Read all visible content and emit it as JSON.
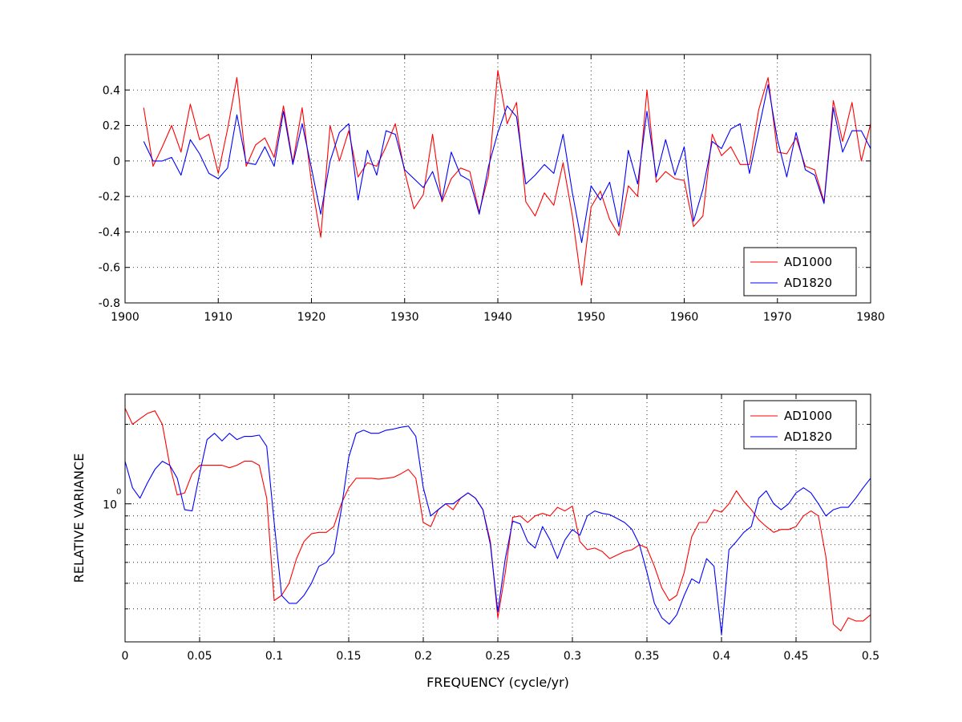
{
  "chart_data": [
    {
      "type": "line",
      "title": "",
      "xlabel": "",
      "ylabel": "",
      "xlim": [
        1900,
        1980
      ],
      "ylim": [
        -0.8,
        0.6
      ],
      "grid": true,
      "legend_position": "bottom-right",
      "x_ticks": [
        1900,
        1910,
        1920,
        1930,
        1940,
        1950,
        1960,
        1970,
        1980
      ],
      "x_tick_labels": [
        "1900",
        "1910",
        "1920",
        "1930",
        "1940",
        "1950",
        "1960",
        "1970",
        "1980"
      ],
      "y_ticks": [
        -0.8,
        -0.6,
        -0.4,
        -0.2,
        0,
        0.2,
        0.4
      ],
      "y_tick_labels": [
        "-0.8",
        "-0.6",
        "-0.4",
        "-0.2",
        "0",
        "0.2",
        "0.4"
      ],
      "x": [
        1902,
        1903,
        1904,
        1905,
        1906,
        1907,
        1908,
        1909,
        1910,
        1911,
        1912,
        1913,
        1914,
        1915,
        1916,
        1917,
        1918,
        1919,
        1920,
        1921,
        1922,
        1923,
        1924,
        1925,
        1926,
        1927,
        1928,
        1929,
        1930,
        1931,
        1932,
        1933,
        1934,
        1935,
        1936,
        1937,
        1938,
        1939,
        1940,
        1941,
        1942,
        1943,
        1944,
        1945,
        1946,
        1947,
        1948,
        1949,
        1950,
        1951,
        1952,
        1953,
        1954,
        1955,
        1956,
        1957,
        1958,
        1959,
        1960,
        1961,
        1962,
        1963,
        1964,
        1965,
        1966,
        1967,
        1968,
        1969,
        1970,
        1971,
        1972,
        1973,
        1974,
        1975,
        1976,
        1977,
        1978,
        1979,
        1980
      ],
      "series": [
        {
          "name": "AD1000",
          "color": "#ff0000",
          "values": [
            0.3,
            -0.03,
            0.08,
            0.2,
            0.05,
            0.32,
            0.12,
            0.15,
            -0.07,
            0.18,
            0.47,
            -0.03,
            0.09,
            0.13,
            0.02,
            0.31,
            -0.01,
            0.3,
            -0.12,
            -0.43,
            0.2,
            0.0,
            0.17,
            -0.09,
            -0.01,
            -0.03,
            0.08,
            0.21,
            -0.06,
            -0.27,
            -0.19,
            0.15,
            -0.23,
            -0.1,
            -0.04,
            -0.06,
            -0.29,
            -0.08,
            0.51,
            0.21,
            0.33,
            -0.23,
            -0.31,
            -0.18,
            -0.25,
            -0.01,
            -0.31,
            -0.7,
            -0.26,
            -0.17,
            -0.33,
            -0.42,
            -0.14,
            -0.2,
            0.4,
            -0.12,
            -0.06,
            -0.1,
            -0.11,
            -0.37,
            -0.31,
            0.15,
            0.03,
            0.08,
            -0.02,
            -0.02,
            0.29,
            0.47,
            0.05,
            0.04,
            0.13,
            -0.03,
            -0.05,
            -0.23,
            0.34,
            0.11,
            0.33,
            0.0,
            0.21
          ]
        },
        {
          "name": "AD1820",
          "color": "#0000ff",
          "values": [
            0.11,
            0.0,
            0.0,
            0.02,
            -0.08,
            0.12,
            0.04,
            -0.07,
            -0.1,
            -0.04,
            0.26,
            -0.01,
            -0.02,
            0.08,
            -0.03,
            0.28,
            -0.02,
            0.21,
            -0.04,
            -0.3,
            0.0,
            0.16,
            0.21,
            -0.22,
            0.06,
            -0.08,
            0.17,
            0.15,
            -0.05,
            -0.1,
            -0.15,
            -0.06,
            -0.22,
            0.05,
            -0.08,
            -0.11,
            -0.3,
            -0.03,
            0.16,
            0.31,
            0.25,
            -0.13,
            -0.08,
            -0.02,
            -0.07,
            0.15,
            -0.18,
            -0.46,
            -0.14,
            -0.22,
            -0.12,
            -0.37,
            0.06,
            -0.13,
            0.28,
            -0.09,
            0.12,
            -0.08,
            0.08,
            -0.34,
            -0.16,
            0.11,
            0.07,
            0.18,
            0.21,
            -0.07,
            0.18,
            0.43,
            0.12,
            -0.09,
            0.16,
            -0.05,
            -0.08,
            -0.24,
            0.3,
            0.05,
            0.17,
            0.17,
            0.07
          ]
        }
      ]
    },
    {
      "type": "line",
      "title": "",
      "xlabel": "FREQUENCY (cycle/yr)",
      "ylabel": "RELATIVE VARIANCE",
      "xlim": [
        0,
        0.5
      ],
      "y_scale": "log",
      "ylim": [
        0.3,
        2.6
      ],
      "grid": true,
      "legend_position": "top-right",
      "x_ticks": [
        0,
        0.05,
        0.1,
        0.15,
        0.2,
        0.25,
        0.3,
        0.35,
        0.4,
        0.45,
        0.5
      ],
      "x_tick_labels": [
        "0",
        "0.05",
        "0.1",
        "0.15",
        "0.2",
        "0.25",
        "0.3",
        "0.35",
        "0.4",
        "0.45",
        "0.5"
      ],
      "y_tick_label_base": "10",
      "y_tick_label_exponent": "0",
      "y_minor_ticks": [
        0.3,
        0.4,
        0.5,
        0.6,
        0.7,
        0.8,
        0.9,
        2
      ],
      "x": [
        0,
        0.005,
        0.01,
        0.015,
        0.02,
        0.025,
        0.03,
        0.035,
        0.04,
        0.045,
        0.05,
        0.055,
        0.06,
        0.065,
        0.07,
        0.075,
        0.08,
        0.085,
        0.09,
        0.095,
        0.1,
        0.105,
        0.11,
        0.115,
        0.12,
        0.125,
        0.13,
        0.135,
        0.14,
        0.145,
        0.15,
        0.155,
        0.16,
        0.165,
        0.17,
        0.175,
        0.18,
        0.185,
        0.19,
        0.195,
        0.2,
        0.205,
        0.21,
        0.215,
        0.22,
        0.225,
        0.23,
        0.235,
        0.24,
        0.245,
        0.25,
        0.255,
        0.26,
        0.265,
        0.27,
        0.275,
        0.28,
        0.285,
        0.29,
        0.295,
        0.3,
        0.305,
        0.31,
        0.315,
        0.32,
        0.325,
        0.33,
        0.335,
        0.34,
        0.345,
        0.35,
        0.355,
        0.36,
        0.365,
        0.37,
        0.375,
        0.38,
        0.385,
        0.39,
        0.395,
        0.4,
        0.405,
        0.41,
        0.415,
        0.42,
        0.425,
        0.43,
        0.435,
        0.44,
        0.445,
        0.45,
        0.455,
        0.46,
        0.465,
        0.47,
        0.475,
        0.48,
        0.485,
        0.49,
        0.495,
        0.5
      ],
      "series": [
        {
          "name": "AD1000",
          "color": "#ff0000",
          "values": [
            2.3,
            2.0,
            2.1,
            2.2,
            2.25,
            2.0,
            1.4,
            1.08,
            1.1,
            1.3,
            1.4,
            1.4,
            1.4,
            1.4,
            1.37,
            1.4,
            1.45,
            1.45,
            1.4,
            1.05,
            0.43,
            0.45,
            0.5,
            0.62,
            0.72,
            0.77,
            0.78,
            0.78,
            0.82,
            1.0,
            1.15,
            1.25,
            1.25,
            1.25,
            1.24,
            1.25,
            1.26,
            1.3,
            1.35,
            1.25,
            0.85,
            0.82,
            0.95,
            1.0,
            0.95,
            1.05,
            1.1,
            1.05,
            0.95,
            0.72,
            0.37,
            0.55,
            0.89,
            0.9,
            0.85,
            0.9,
            0.92,
            0.9,
            0.97,
            0.94,
            0.98,
            0.72,
            0.67,
            0.68,
            0.66,
            0.62,
            0.64,
            0.66,
            0.67,
            0.7,
            0.68,
            0.58,
            0.48,
            0.43,
            0.45,
            0.55,
            0.75,
            0.85,
            0.85,
            0.95,
            0.93,
            1.0,
            1.12,
            1.02,
            0.95,
            0.87,
            0.82,
            0.78,
            0.8,
            0.8,
            0.82,
            0.9,
            0.94,
            0.9,
            0.63,
            0.35,
            0.33,
            0.37,
            0.36,
            0.36,
            0.38
          ]
        },
        {
          "name": "AD1820",
          "color": "#0000ff",
          "values": [
            1.45,
            1.15,
            1.05,
            1.2,
            1.35,
            1.45,
            1.4,
            1.25,
            0.95,
            0.94,
            1.3,
            1.75,
            1.85,
            1.73,
            1.85,
            1.75,
            1.8,
            1.8,
            1.82,
            1.65,
            0.85,
            0.45,
            0.42,
            0.42,
            0.45,
            0.5,
            0.58,
            0.6,
            0.65,
            0.95,
            1.5,
            1.85,
            1.9,
            1.85,
            1.85,
            1.9,
            1.92,
            1.95,
            1.97,
            1.8,
            1.15,
            0.9,
            0.95,
            1.0,
            1.0,
            1.05,
            1.1,
            1.05,
            0.95,
            0.7,
            0.39,
            0.62,
            0.86,
            0.84,
            0.72,
            0.68,
            0.82,
            0.73,
            0.62,
            0.73,
            0.8,
            0.76,
            0.9,
            0.94,
            0.92,
            0.91,
            0.88,
            0.85,
            0.8,
            0.7,
            0.55,
            0.42,
            0.37,
            0.35,
            0.38,
            0.45,
            0.52,
            0.5,
            0.62,
            0.58,
            0.32,
            0.67,
            0.72,
            0.78,
            0.82,
            1.05,
            1.12,
            1.0,
            0.95,
            1.0,
            1.1,
            1.15,
            1.1,
            1.0,
            0.9,
            0.95,
            0.97,
            0.97,
            1.05,
            1.15,
            1.25
          ]
        }
      ]
    }
  ]
}
